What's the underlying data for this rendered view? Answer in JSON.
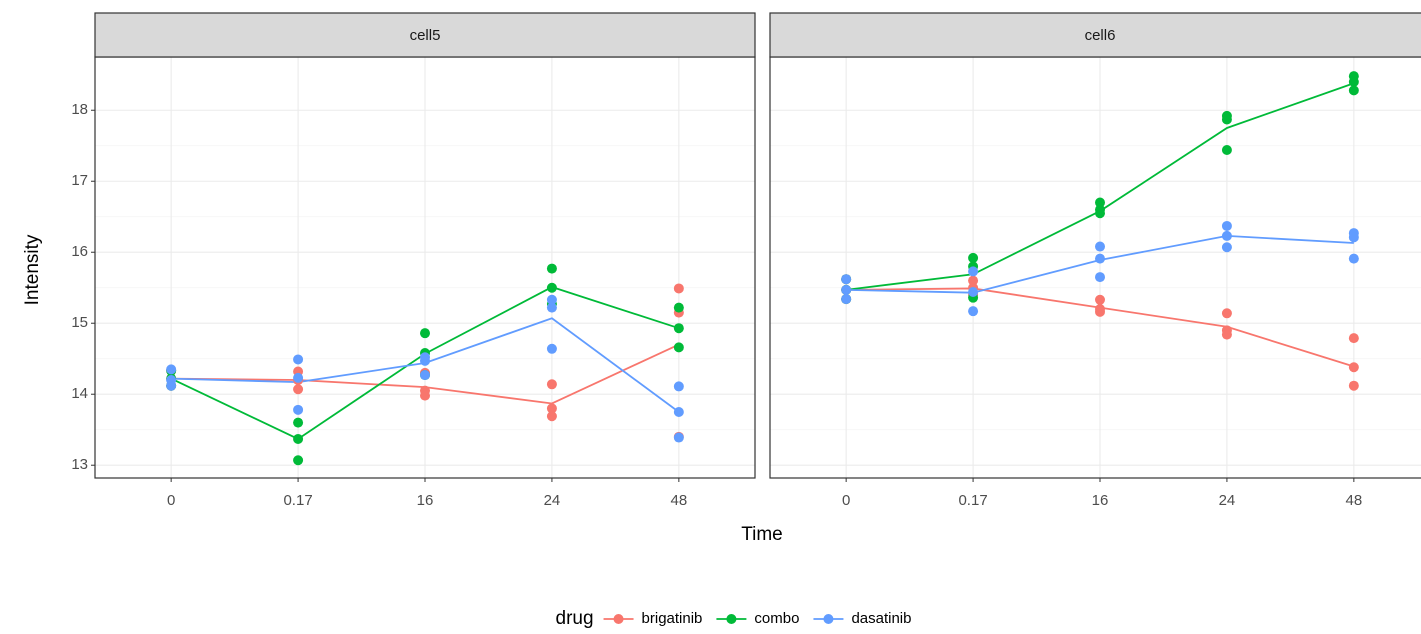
{
  "shared": {
    "xlabel": "Time",
    "ylabel": "Intensity",
    "legend_title": "drug"
  },
  "chart_data": [
    {
      "type": "line",
      "title": "cell5",
      "categories": [
        "0",
        "0.17",
        "16",
        "24",
        "48"
      ],
      "ylim": [
        12.82,
        18.75
      ],
      "yticks": [
        13,
        14,
        15,
        16,
        17,
        18
      ],
      "grid": true,
      "series": [
        {
          "name": "brigatinib",
          "color": "#f8766d",
          "values": [
            14.22,
            14.2,
            14.1,
            13.87,
            14.7
          ],
          "points": [
            [
              14.33,
              14.22,
              14.12
            ],
            [
              14.32,
              14.2,
              14.07
            ],
            [
              14.3,
              14.05,
              13.98
            ],
            [
              14.14,
              13.8,
              13.69
            ],
            [
              15.49,
              15.15,
              13.4
            ]
          ]
        },
        {
          "name": "combo",
          "color": "#00ba38",
          "values": [
            14.22,
            13.37,
            14.57,
            15.51,
            14.93
          ],
          "points": [
            [
              14.33,
              14.22,
              14.12
            ],
            [
              13.6,
              13.37,
              13.07
            ],
            [
              14.86,
              14.58,
              14.27
            ],
            [
              15.77,
              15.5,
              15.27
            ],
            [
              15.22,
              14.93,
              14.66
            ]
          ]
        },
        {
          "name": "dasatinib",
          "color": "#619cff",
          "values": [
            14.22,
            14.17,
            14.44,
            15.07,
            13.75
          ],
          "points": [
            [
              14.35,
              14.2,
              14.12
            ],
            [
              14.49,
              14.23,
              13.78
            ],
            [
              14.52,
              14.47,
              14.27
            ],
            [
              15.33,
              15.22,
              14.64
            ],
            [
              14.11,
              13.75,
              13.39
            ]
          ]
        }
      ]
    },
    {
      "type": "line",
      "title": "cell6",
      "categories": [
        "0",
        "0.17",
        "16",
        "24",
        "48"
      ],
      "ylim": [
        12.82,
        18.75
      ],
      "yticks": [
        13,
        14,
        15,
        16,
        17,
        18
      ],
      "grid": true,
      "series": [
        {
          "name": "brigatinib",
          "color": "#f8766d",
          "values": [
            15.47,
            15.49,
            15.22,
            14.95,
            14.39
          ],
          "points": [
            [
              15.62,
              15.47,
              15.34
            ],
            [
              15.6,
              15.5,
              15.4
            ],
            [
              15.33,
              15.2,
              15.16
            ],
            [
              15.14,
              14.9,
              14.84
            ],
            [
              14.79,
              14.38,
              14.12
            ]
          ]
        },
        {
          "name": "combo",
          "color": "#00ba38",
          "values": [
            15.47,
            15.69,
            16.58,
            17.75,
            18.38
          ],
          "points": [
            [
              15.62,
              15.47,
              15.34
            ],
            [
              15.92,
              15.8,
              15.36
            ],
            [
              16.7,
              16.6,
              16.55
            ],
            [
              17.92,
              17.87,
              17.44
            ],
            [
              18.48,
              18.4,
              18.28
            ]
          ]
        },
        {
          "name": "dasatinib",
          "color": "#619cff",
          "values": [
            15.47,
            15.43,
            15.89,
            16.23,
            16.13
          ],
          "points": [
            [
              15.62,
              15.47,
              15.34
            ],
            [
              15.73,
              15.44,
              15.17
            ],
            [
              16.08,
              15.91,
              15.65
            ],
            [
              16.37,
              16.23,
              16.07
            ],
            [
              16.27,
              16.21,
              15.91
            ]
          ]
        }
      ]
    }
  ]
}
